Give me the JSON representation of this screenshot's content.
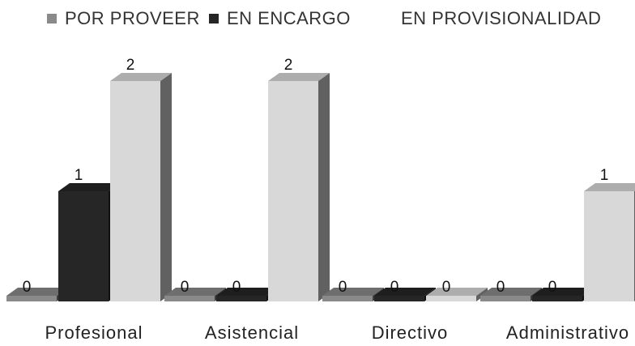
{
  "chart_data": {
    "type": "bar",
    "categories": [
      "Profesional",
      "Asistencial",
      "Directivo",
      "Administrativo"
    ],
    "series": [
      {
        "name": "POR PROVEER",
        "values": [
          0,
          0,
          0,
          0
        ],
        "color": "#8a8a8a"
      },
      {
        "name": "EN ENCARGO",
        "values": [
          1,
          0,
          0,
          0
        ],
        "color": "#262626"
      },
      {
        "name": "EN PROVISIONALIDAD",
        "values": [
          2,
          2,
          0,
          1
        ],
        "color": "#d8d8d8"
      }
    ],
    "ylim": [
      0,
      2
    ],
    "legend_position": "top",
    "grid": false,
    "style": "3d-columns"
  }
}
